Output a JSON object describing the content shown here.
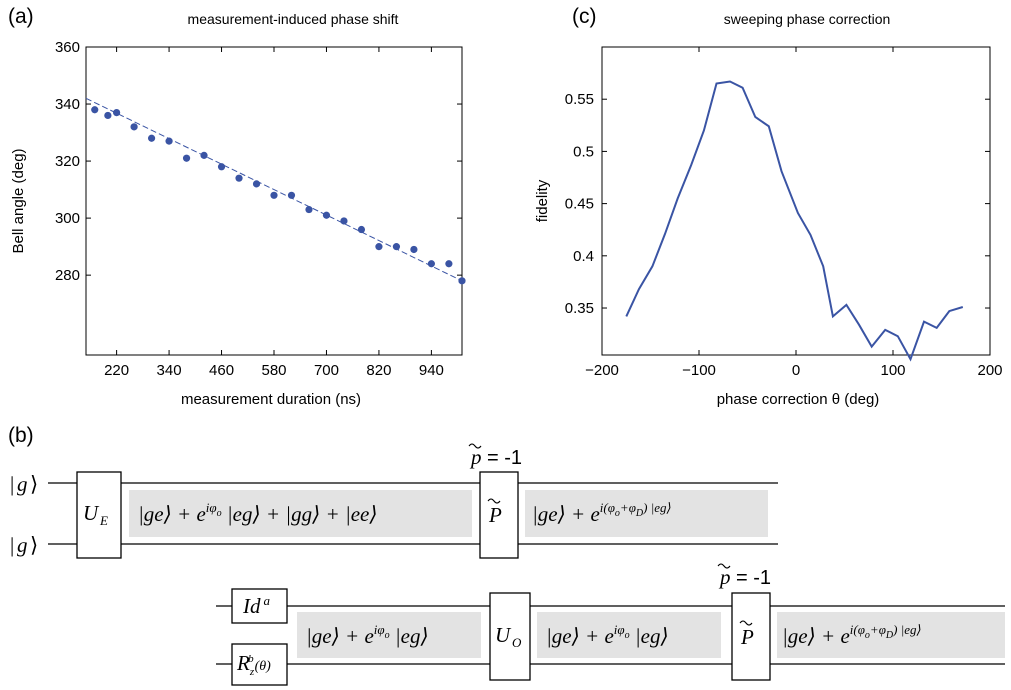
{
  "chart_data": [
    {
      "panel": "(a)",
      "type": "scatter",
      "title": "measurement-induced phase shift",
      "xlabel": "measurement duration (ns)",
      "ylabel": "Bell angle (deg)",
      "xlim": [
        150,
        1010
      ],
      "ylim": [
        252,
        360
      ],
      "xticks": [
        "220",
        "340",
        "460",
        "580",
        "700",
        "820",
        "940"
      ],
      "yticks": [
        "280",
        "300",
        "320",
        "340",
        "360"
      ],
      "x": [
        170,
        200,
        220,
        260,
        300,
        340,
        380,
        420,
        460,
        500,
        540,
        580,
        620,
        660,
        700,
        740,
        780,
        820,
        860,
        900,
        940,
        980,
        1010
      ],
      "y": [
        338,
        336,
        337,
        332,
        328,
        327,
        321,
        322,
        318,
        314,
        312,
        308,
        308,
        303,
        301,
        299,
        296,
        290,
        290,
        289,
        284,
        284,
        278
      ],
      "fit": {
        "x": [
          150,
          1010
        ],
        "y": [
          342,
          278
        ]
      },
      "grid": false
    },
    {
      "panel": "(c)",
      "type": "line",
      "title": "sweeping phase correction",
      "xlabel": "phase correction θ (deg)",
      "ylabel": "fidelity",
      "xlim": [
        -200,
        200
      ],
      "ylim": [
        0.305,
        0.6
      ],
      "xticks": [
        "−200",
        "−100",
        "0",
        "100",
        "200"
      ],
      "yticks": [
        "0.35",
        "0.4",
        "0.45",
        "0.5",
        "0.55"
      ],
      "x": [
        -175,
        -162,
        -148,
        -135,
        -122,
        -108,
        -95,
        -82,
        -68,
        -55,
        -42,
        -28,
        -15,
        2,
        15,
        28,
        38,
        52,
        65,
        78,
        92,
        105,
        118,
        132,
        145,
        158,
        172
      ],
      "y": [
        0.342,
        0.368,
        0.39,
        0.421,
        0.455,
        0.487,
        0.52,
        0.565,
        0.567,
        0.561,
        0.533,
        0.524,
        0.481,
        0.441,
        0.42,
        0.39,
        0.342,
        0.353,
        0.334,
        0.313,
        0.329,
        0.323,
        0.301,
        0.337,
        0.331,
        0.347,
        0.351
      ],
      "grid": false
    }
  ],
  "panel_b": {
    "label": "(b)",
    "top": {
      "inputs": [
        "g",
        "g"
      ],
      "gate1": "E",
      "state1": [
        "|ge⟩ + e",
        "iφ",
        "o",
        " |eg⟩ + |gg⟩ + |ee⟩"
      ],
      "parity": "P",
      "parity_value": "= -1",
      "state2": [
        "|ge⟩ + e",
        "i(φ",
        "o",
        "+φ",
        "D",
        ") |eg⟩"
      ]
    },
    "bottom": {
      "gate_a": [
        "Id",
        "a"
      ],
      "gate_b": [
        "R",
        "z",
        "b",
        "(θ)"
      ],
      "state1": [
        "|ge⟩ + e",
        "iφ",
        "o",
        " |eg⟩"
      ],
      "gate2": "O",
      "state2": [
        "|ge⟩ + e",
        "iφ",
        "o",
        " |eg⟩"
      ],
      "parity": "P",
      "parity_value": "= -1",
      "state3": [
        "|ge⟩ + e",
        "i(φ",
        "o",
        "+φ",
        "D",
        ") |eg⟩"
      ]
    }
  }
}
